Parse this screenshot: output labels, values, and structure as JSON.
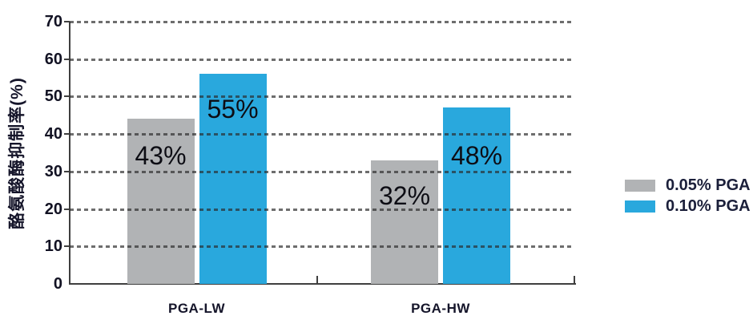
{
  "chart_data": {
    "type": "bar",
    "title": "",
    "ylabel": "酪氨酸酶抑制率(%)",
    "xlabel": "",
    "categories": [
      "PGA-LW",
      "PGA-HW"
    ],
    "series": [
      {
        "name": "0.05% PGA",
        "color": "#b1b3b5",
        "values": [
          43,
          32
        ],
        "labels": [
          "43%",
          "32%"
        ],
        "drawn_heights": [
          44,
          33
        ]
      },
      {
        "name": "0.10% PGA",
        "color": "#29a8dd",
        "values": [
          55,
          48
        ],
        "labels": [
          "55%",
          "48%"
        ],
        "drawn_heights": [
          56,
          47
        ]
      }
    ],
    "ylim": [
      0,
      70
    ],
    "yticks": [
      0,
      10,
      20,
      30,
      40,
      50,
      60,
      70
    ],
    "grid": "horizontal-dashed",
    "gridline_color": "#595959",
    "axis_color": "#3f3f3f",
    "label_color": "#15152a",
    "legend_position": "right-middle"
  }
}
